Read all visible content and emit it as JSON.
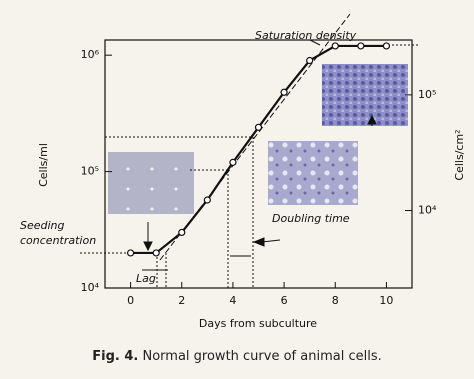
{
  "chart_data": {
    "type": "line",
    "log_scale": true,
    "x_label": "Days from subculture",
    "y_label": "Cells/ml",
    "y2_label": "Cells/cm²",
    "xlim": [
      -1,
      11
    ],
    "xticks": [
      0,
      2,
      4,
      6,
      8,
      10
    ],
    "ylim": [
      10000,
      1350000
    ],
    "yticks": [
      {
        "value": 10000,
        "label": "10⁴"
      },
      {
        "value": 100000,
        "label": "10⁵"
      },
      {
        "value": 1000000,
        "label": "10⁶"
      }
    ],
    "y2lim": [
      2140,
      298000
    ],
    "y2ticks": [
      {
        "value": 10000,
        "label": "10⁴"
      },
      {
        "value": 100000,
        "label": "10⁵"
      }
    ],
    "series": [
      {
        "name": "Cells/ml",
        "color": "#111111",
        "x": [
          0,
          1,
          2,
          3,
          4,
          5,
          6,
          7,
          8,
          9,
          10
        ],
        "values": [
          20000,
          20000,
          30000,
          57000,
          120000,
          240000,
          480000,
          900000,
          1200000,
          1200000,
          1200000
        ]
      }
    ],
    "annotations": {
      "saturation": "Saturation density",
      "seeding_1": "Seeding",
      "seeding_2": "concentration",
      "lag": "Lag",
      "doubling": "Doubling time"
    },
    "caption_label": "Fig. 4.",
    "caption": "Normal growth curve of animal cells."
  }
}
